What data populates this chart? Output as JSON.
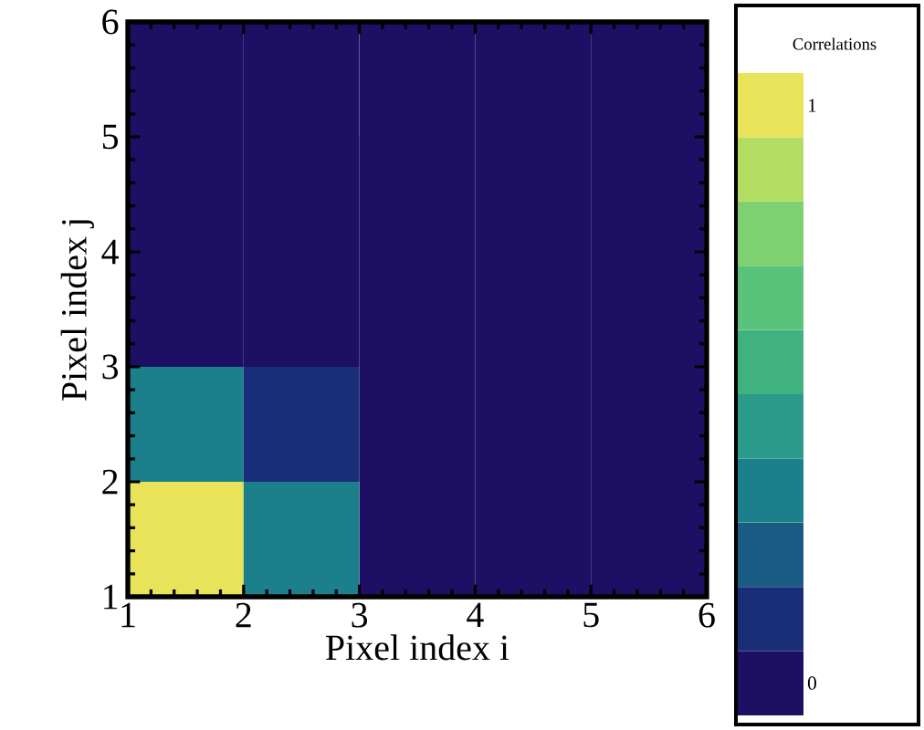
{
  "chart_data": {
    "type": "heatmap",
    "xlabel": "Pixel index i",
    "ylabel": "Pixel index j",
    "clabel": "Correlations",
    "xlim": [
      1,
      6
    ],
    "xticks": [
      1,
      2,
      3,
      4,
      5,
      6
    ],
    "ylim": [
      1,
      6
    ],
    "yticks": [
      1,
      2,
      3,
      4,
      5,
      6
    ],
    "cells": [
      [
        0,
        0,
        0,
        0,
        0
      ],
      [
        0,
        0,
        0,
        0,
        0
      ],
      [
        0,
        0,
        0,
        0,
        0
      ],
      [
        0.33,
        0.11,
        0,
        0,
        0
      ],
      [
        1,
        0.33,
        0,
        0,
        0
      ]
    ],
    "clim": [
      -0.056,
      1.056
    ],
    "cticks": [
      0,
      1
    ]
  }
}
